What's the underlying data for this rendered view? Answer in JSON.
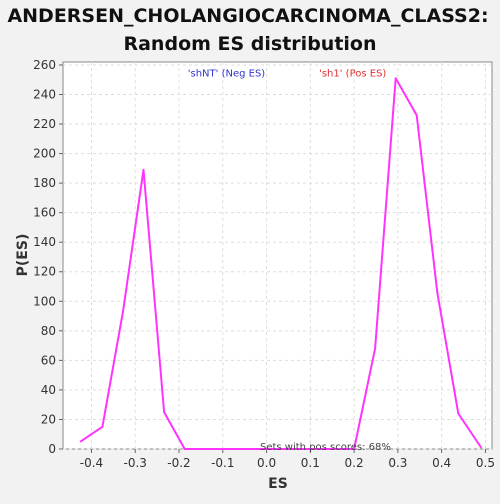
{
  "chart_data": {
    "type": "line",
    "title_lines": [
      "ANDERSEN_CHOLANGIOCARCINOMA_CLASS2:",
      "Random ES distribution"
    ],
    "xlabel": "ES",
    "ylabel": "P(ES)",
    "xlim": [
      -0.465,
      0.515
    ],
    "ylim": [
      0,
      262
    ],
    "x_ticks": [
      -0.4,
      -0.3,
      -0.2,
      -0.1,
      0.0,
      0.1,
      0.2,
      0.3,
      0.4,
      0.5
    ],
    "x_tick_labels": [
      "-0.4",
      "-0.3",
      "-0.2",
      "-0.1",
      "0.0",
      "0.1",
      "0.2",
      "0.3",
      "0.4",
      "0.5"
    ],
    "y_ticks": [
      0,
      20,
      40,
      60,
      80,
      100,
      120,
      140,
      160,
      180,
      200,
      220,
      240,
      260
    ],
    "y_tick_labels": [
      "0",
      "20",
      "40",
      "60",
      "80",
      "100",
      "120",
      "140",
      "160",
      "180",
      "200",
      "220",
      "240",
      "260"
    ],
    "grid": true,
    "series": [
      {
        "color": "#ff33ff",
        "x": [
          -0.425,
          -0.375,
          -0.328,
          -0.281,
          -0.234,
          -0.187,
          -0.14,
          -0.093,
          -0.046,
          0.001,
          0.048,
          0.095,
          0.142,
          0.2,
          0.248,
          0.295,
          0.343,
          0.39,
          0.438,
          0.49
        ],
        "y": [
          5,
          15,
          93,
          189,
          25,
          0,
          0,
          0,
          0,
          0,
          0,
          0,
          0,
          0,
          68,
          251,
          226,
          106,
          24,
          1
        ]
      }
    ],
    "annotations": [
      {
        "text": "'shNT' (Neg ES)",
        "color": "#3333cc",
        "x": -0.18,
        "y": 255
      },
      {
        "text": "'sh1' (Pos ES)",
        "color": "#e03030",
        "x": 0.12,
        "y": 255
      },
      {
        "text": "Sets with pos scores: 68%",
        "color": "#444444",
        "x": -0.015,
        "y": 2
      }
    ]
  }
}
